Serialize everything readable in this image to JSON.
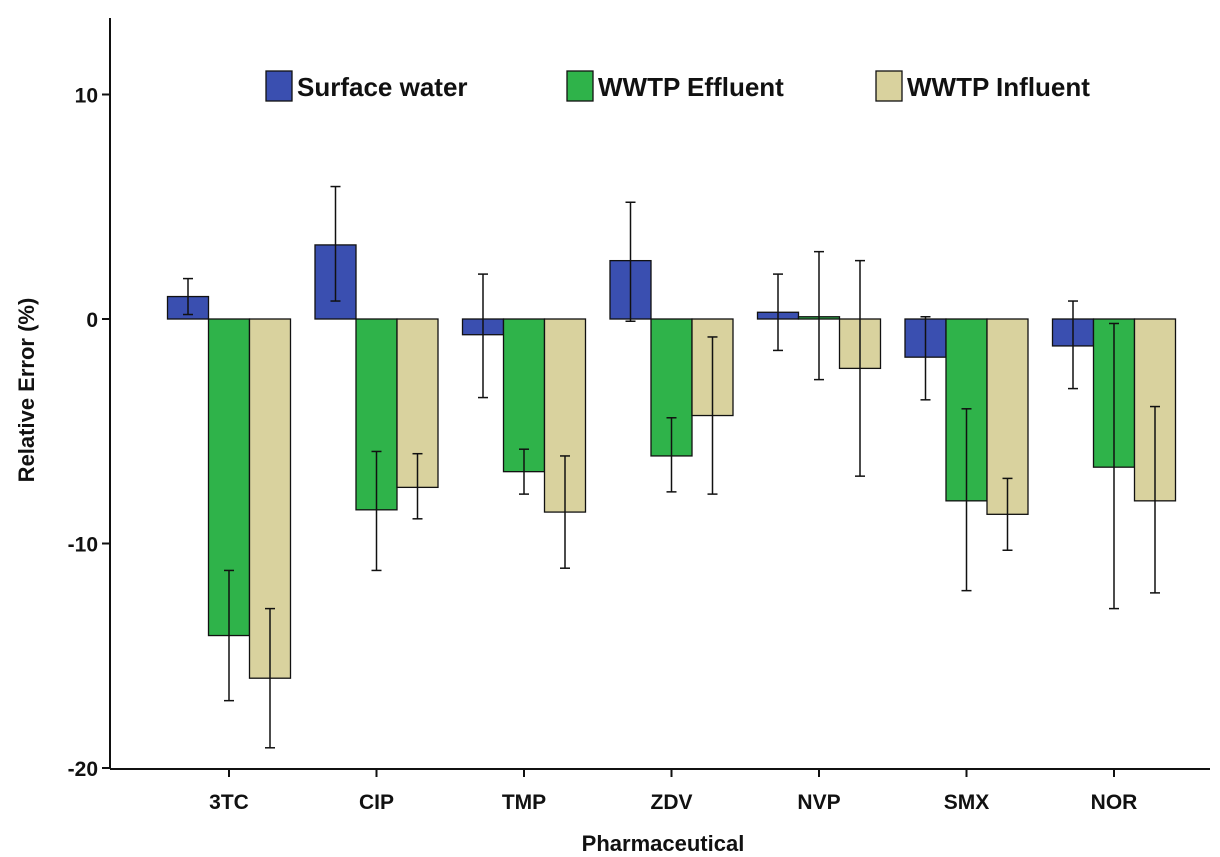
{
  "chart_data": {
    "type": "bar",
    "title": "",
    "xlabel": "Pharmaceutical",
    "ylabel": "Relative Error (%)",
    "ylim": [
      -20,
      13
    ],
    "yticks": [
      10,
      0,
      -10,
      -20
    ],
    "grid": false,
    "legend_position": "top",
    "categories": [
      "3TC",
      "CIP",
      "TMP",
      "ZDV",
      "NVP",
      "SMX",
      "NOR"
    ],
    "series": [
      {
        "name": "Surface water",
        "color": "#3a4fb0",
        "values": [
          1.0,
          3.3,
          -0.7,
          2.6,
          0.3,
          -1.7,
          -1.2
        ],
        "error_low": [
          0.2,
          0.8,
          -3.5,
          -0.1,
          -1.4,
          -3.6,
          -3.1
        ],
        "error_high": [
          1.8,
          5.9,
          2.0,
          5.2,
          2.0,
          0.1,
          0.8
        ]
      },
      {
        "name": "WWTP Effluent",
        "color": "#2fb34a",
        "values": [
          -14.1,
          -8.5,
          -6.8,
          -6.1,
          0.1,
          -8.1,
          -6.6
        ],
        "error_low": [
          -17.0,
          -11.2,
          -7.8,
          -7.7,
          -2.7,
          -12.1,
          -12.9
        ],
        "error_high": [
          -11.2,
          -5.9,
          -5.8,
          -4.4,
          3.0,
          -4.0,
          -0.2
        ]
      },
      {
        "name": "WWTP Influent",
        "color": "#d9d29e",
        "values": [
          -16.0,
          -7.5,
          -8.6,
          -4.3,
          -2.2,
          -8.7,
          -8.1
        ],
        "error_low": [
          -19.1,
          -8.9,
          -11.1,
          -7.8,
          -7.0,
          -10.3,
          -12.2
        ],
        "error_high": [
          -12.9,
          -6.0,
          -6.1,
          -0.8,
          2.6,
          -7.1,
          -3.9
        ]
      }
    ]
  }
}
